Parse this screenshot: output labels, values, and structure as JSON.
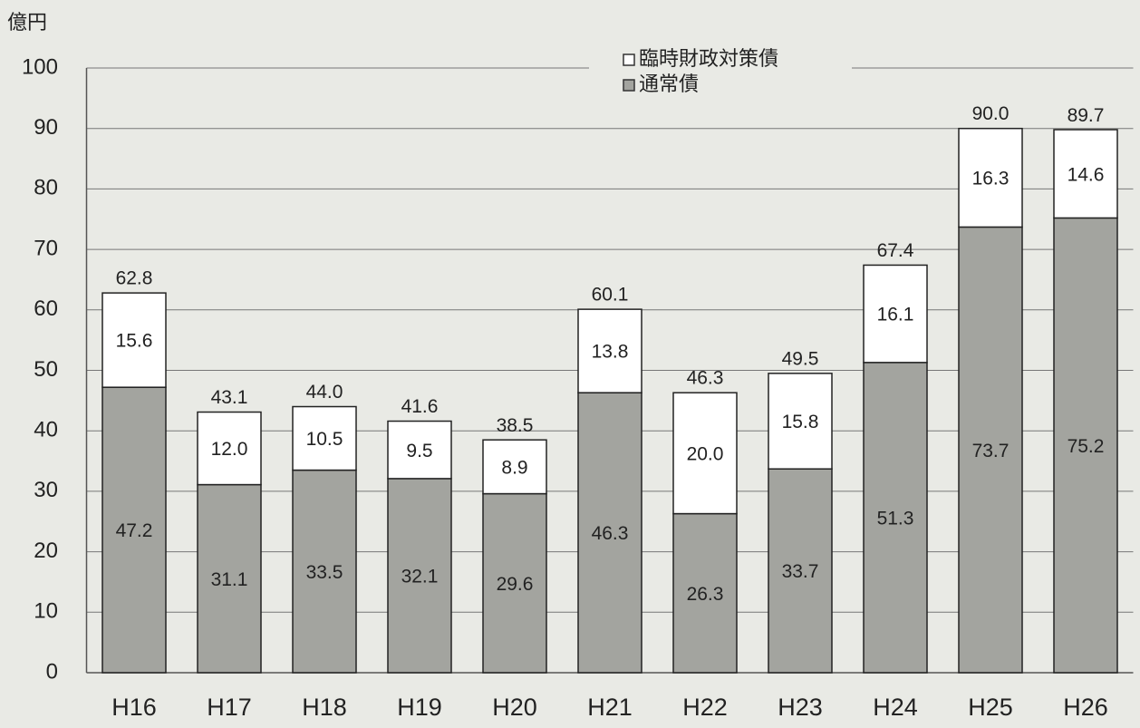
{
  "chart_data": {
    "type": "stacked_bar",
    "y_label": "億円",
    "categories": [
      "H16",
      "H17",
      "H18",
      "H19",
      "H20",
      "H21",
      "H22",
      "H23",
      "H24",
      "H25",
      "H26"
    ],
    "series": [
      {
        "name": "通常債",
        "color": "#a3a49f",
        "values": [
          47.2,
          31.1,
          33.5,
          32.1,
          29.6,
          46.3,
          26.3,
          33.7,
          51.3,
          73.7,
          75.2
        ],
        "value_labels": [
          "47.2",
          "31.1",
          "33.5",
          "32.1",
          "29.6",
          "46.3",
          "26.3",
          "33.7",
          "51.3",
          "73.7",
          "75.2"
        ]
      },
      {
        "name": "臨時財政対策債",
        "color": "#ffffff",
        "values": [
          15.6,
          12.0,
          10.5,
          9.5,
          8.9,
          13.8,
          20.0,
          15.8,
          16.1,
          16.3,
          14.6
        ],
        "value_labels": [
          "15.6",
          "12.0",
          "10.5",
          "9.5",
          "8.9",
          "13.8",
          "20.0",
          "15.8",
          "16.1",
          "16.3",
          "14.6"
        ]
      }
    ],
    "totals": [
      62.8,
      43.1,
      44.0,
      41.6,
      38.5,
      60.1,
      46.3,
      49.5,
      67.4,
      90.0,
      89.7
    ],
    "total_labels": [
      "62.8",
      "43.1",
      "44.0",
      "41.6",
      "38.5",
      "60.1",
      "46.3",
      "49.5",
      "67.4",
      "90.0",
      "89.7"
    ],
    "ylim": [
      0,
      100
    ],
    "yticks": [
      0,
      10,
      20,
      30,
      40,
      50,
      60,
      70,
      80,
      90,
      100
    ],
    "grid": true
  }
}
